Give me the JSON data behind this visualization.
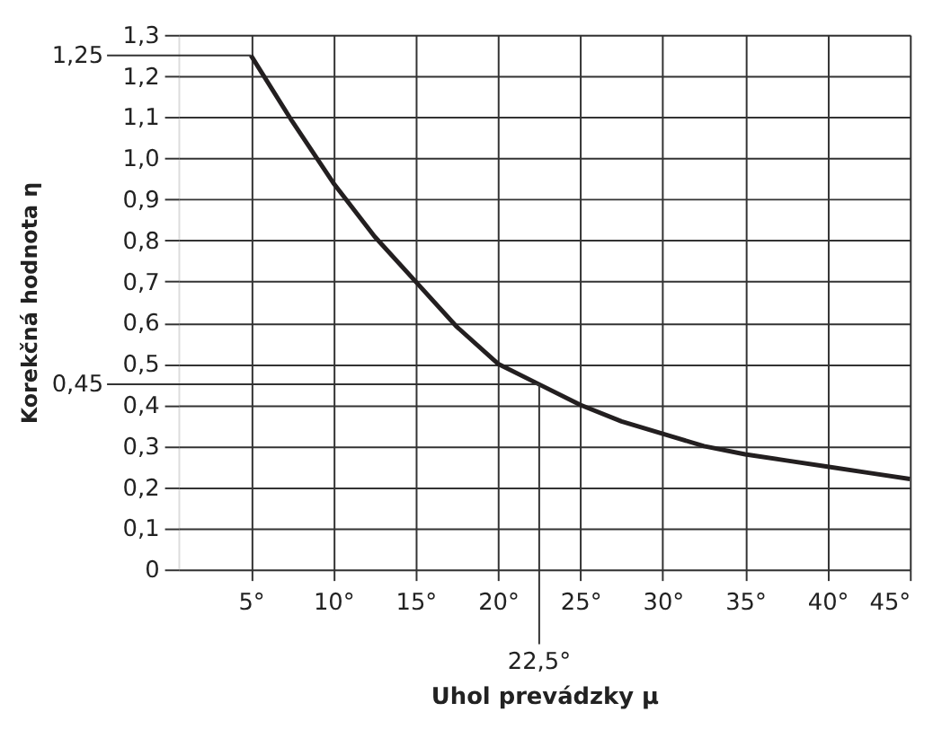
{
  "chart_data": {
    "type": "line",
    "xlabel": "Uhol prevádzky μ",
    "ylabel": "Korekčná hodnota  η",
    "x": [
      5,
      7.5,
      10,
      12.5,
      15,
      17.5,
      20,
      22.5,
      25,
      27.5,
      30,
      32.5,
      35,
      37.5,
      40,
      42.5,
      45
    ],
    "series": [
      {
        "color": "#231f20",
        "values": [
          1.25,
          1.09,
          0.94,
          0.81,
          0.7,
          0.59,
          0.5,
          0.45,
          0.4,
          0.36,
          0.33,
          0.3,
          0.28,
          0.265,
          0.25,
          0.235,
          0.22
        ]
      }
    ],
    "xlim": [
      0.6,
      45
    ],
    "xticks": [
      {
        "value": 5,
        "label": "5°"
      },
      {
        "value": 10,
        "label": "10°"
      },
      {
        "value": 15,
        "label": "15°"
      },
      {
        "value": 20,
        "label": "20°"
      },
      {
        "value": 25,
        "label": "25°"
      },
      {
        "value": 30,
        "label": "30°"
      },
      {
        "value": 35,
        "label": "35°"
      },
      {
        "value": 40,
        "label": "40°"
      },
      {
        "value": 45,
        "label": "45°"
      }
    ],
    "ylim": [
      0,
      1.3
    ],
    "yticks": [
      0,
      {
        "value": 0.1,
        "label": "0,1"
      },
      {
        "value": 0.2,
        "label": "0,2"
      },
      {
        "value": 0.3,
        "label": "0,3"
      },
      {
        "value": 0.4,
        "label": "0,4"
      },
      {
        "value": 0.5,
        "label": "0,5"
      },
      {
        "value": 0.6,
        "label": "0,6"
      },
      {
        "value": 0.7,
        "label": "0,7"
      },
      {
        "value": 0.8,
        "label": "0,8"
      },
      {
        "value": 0.9,
        "label": "0,9"
      },
      {
        "value": 1.0,
        "label": "1,0"
      },
      {
        "value": 1.1,
        "label": "1,1"
      },
      {
        "value": 1.2,
        "label": "1,2"
      },
      {
        "value": 1.3,
        "label": "1,3"
      }
    ],
    "grid": true,
    "line_style": "solid",
    "ref_lines": [
      {
        "axis": "y",
        "value": 1.25,
        "label": "1,25"
      },
      {
        "axis": "y",
        "value": 0.45,
        "label": "0,45"
      },
      {
        "axis": "x",
        "value": 22.5,
        "label": "22,5°"
      }
    ]
  }
}
